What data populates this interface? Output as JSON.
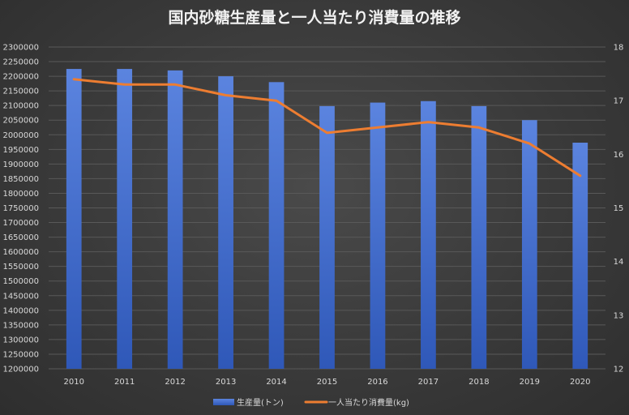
{
  "chart_data": {
    "type": "bar",
    "title": "国内砂糖生産量と一人当たり消費量の推移",
    "categories": [
      "2010",
      "2011",
      "2012",
      "2013",
      "2014",
      "2015",
      "2016",
      "2017",
      "2018",
      "2019",
      "2020"
    ],
    "series": [
      {
        "name": "生産量(トン)",
        "type": "bar",
        "axis": "left",
        "color": "#4a72d0",
        "values": [
          2225000,
          2225000,
          2220000,
          2200000,
          2180000,
          2098000,
          2110000,
          2115000,
          2098000,
          2050000,
          1973000
        ]
      },
      {
        "name": "一人当たり消費量(kg)",
        "type": "line",
        "axis": "right",
        "color": "#ed7d31",
        "values": [
          17.4,
          17.3,
          17.3,
          17.1,
          17.0,
          16.4,
          16.5,
          16.6,
          16.5,
          16.2,
          15.6
        ]
      }
    ],
    "y_left": {
      "min": 1200000,
      "max": 2300000,
      "step": 50000,
      "tick_labels": [
        "2300000",
        "2250000",
        "2200000",
        "2150000",
        "2100000",
        "2050000",
        "2000000",
        "1950000",
        "1900000",
        "1850000",
        "1800000",
        "1750000",
        "1700000",
        "1650000",
        "1600000",
        "1550000",
        "1500000",
        "1450000",
        "1400000",
        "1350000",
        "1300000",
        "1250000",
        "1200000"
      ]
    },
    "y_right": {
      "min": 12,
      "max": 18,
      "step": 1,
      "tick_labels": [
        "18",
        "17",
        "16",
        "15",
        "14",
        "13",
        "12"
      ]
    },
    "grid": true,
    "legend_position": "bottom",
    "colors": {
      "background": "#3a3a3a",
      "grid": "#595959",
      "text": "#d9d9d9"
    }
  }
}
